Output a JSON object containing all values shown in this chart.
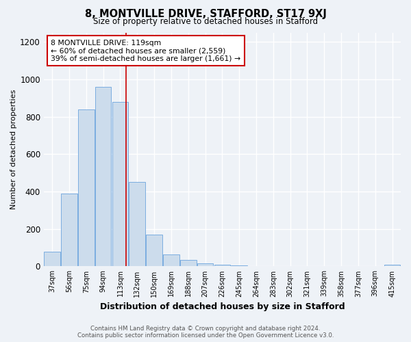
{
  "title": "8, MONTVILLE DRIVE, STAFFORD, ST17 9XJ",
  "subtitle": "Size of property relative to detached houses in Stafford",
  "xlabel": "Distribution of detached houses by size in Stafford",
  "ylabel": "Number of detached properties",
  "categories": [
    "37sqm",
    "56sqm",
    "75sqm",
    "94sqm",
    "113sqm",
    "132sqm",
    "150sqm",
    "169sqm",
    "188sqm",
    "207sqm",
    "226sqm",
    "245sqm",
    "264sqm",
    "283sqm",
    "302sqm",
    "321sqm",
    "339sqm",
    "358sqm",
    "377sqm",
    "396sqm",
    "415sqm"
  ],
  "values": [
    80,
    390,
    840,
    960,
    880,
    450,
    170,
    65,
    35,
    15,
    10,
    5,
    2,
    1,
    1,
    0,
    0,
    0,
    0,
    0,
    8
  ],
  "bar_color": "#ccdcec",
  "bar_edge_color": "#7aade0",
  "marker_index": 4.35,
  "marker_color": "#cc0000",
  "annotation_text": "8 MONTVILLE DRIVE: 119sqm\n← 60% of detached houses are smaller (2,559)\n39% of semi-detached houses are larger (1,661) →",
  "annotation_box_color": "#ffffff",
  "annotation_box_edge": "#cc0000",
  "footer_line1": "Contains HM Land Registry data © Crown copyright and database right 2024.",
  "footer_line2": "Contains public sector information licensed under the Open Government Licence v3.0.",
  "bg_color": "#eef2f7",
  "plot_bg_color": "#eef2f7",
  "grid_color": "#ffffff",
  "ylim": [
    0,
    1250
  ],
  "yticks": [
    0,
    200,
    400,
    600,
    800,
    1000,
    1200
  ]
}
